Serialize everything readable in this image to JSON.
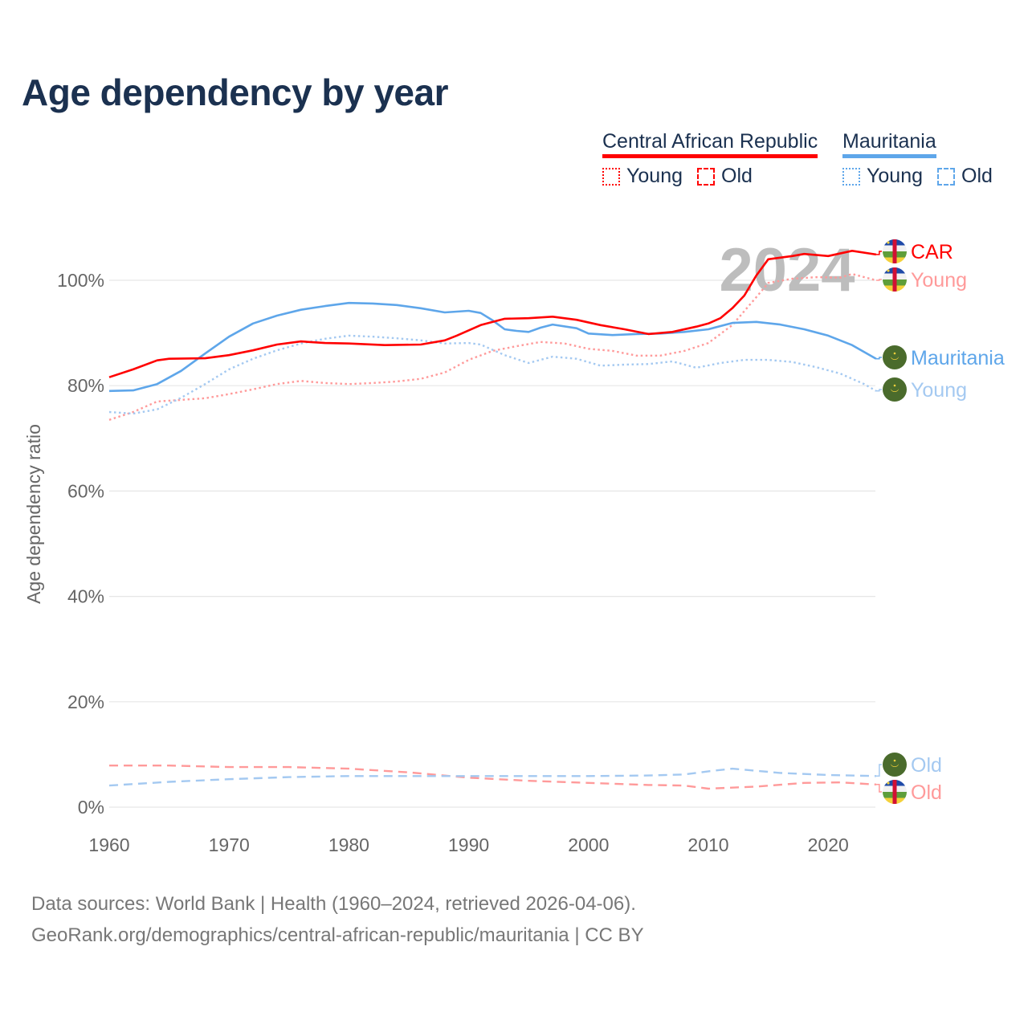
{
  "title": "Age dependency by year",
  "legend": {
    "groups": [
      {
        "country": "Central African Republic",
        "color": "#ff0000",
        "young": "Young",
        "old": "Old"
      },
      {
        "country": "Mauritania",
        "color": "#5ea6ea",
        "young": "Young",
        "old": "Old"
      }
    ]
  },
  "year_watermark": "2024",
  "footer": {
    "line1": "Data sources: World Bank | Health (1960–2024, retrieved 2026-04-06).",
    "line2": "GeoRank.org/demographics/central-african-republic/mauritania | CC BY"
  },
  "chart_data": {
    "type": "line",
    "title": "Age dependency by year",
    "xlabel": "",
    "ylabel": "Age dependency ratio",
    "xlim": [
      1960,
      2024
    ],
    "ylim": [
      0,
      110
    ],
    "x_ticks": [
      "1960",
      "1970",
      "1980",
      "1990",
      "2000",
      "2010",
      "2020"
    ],
    "x_tick_values": [
      1960,
      1970,
      1980,
      1990,
      2000,
      2010,
      2020
    ],
    "y_ticks": [
      "0%",
      "20%",
      "40%",
      "60%",
      "80%",
      "100%"
    ],
    "y_tick_values": [
      0,
      20,
      40,
      60,
      80,
      100
    ],
    "grid": true,
    "series": [
      {
        "name": "Central African Republic",
        "end_label": "CAR",
        "color": "#ff0000",
        "style": "solid",
        "flag": "car",
        "points": [
          [
            1960,
            81.6
          ],
          [
            1962,
            83.1
          ],
          [
            1964,
            84.8
          ],
          [
            1965,
            85.1
          ],
          [
            1968,
            85.2
          ],
          [
            1970,
            85.8
          ],
          [
            1972,
            86.7
          ],
          [
            1974,
            87.8
          ],
          [
            1976,
            88.4
          ],
          [
            1978,
            88.1
          ],
          [
            1980,
            88.0
          ],
          [
            1983,
            87.7
          ],
          [
            1986,
            87.8
          ],
          [
            1988,
            88.6
          ],
          [
            1989,
            89.5
          ],
          [
            1991,
            91.5
          ],
          [
            1993,
            92.7
          ],
          [
            1995,
            92.8
          ],
          [
            1997,
            93.1
          ],
          [
            1999,
            92.5
          ],
          [
            2001,
            91.5
          ],
          [
            2003,
            90.7
          ],
          [
            2005,
            89.8
          ],
          [
            2007,
            90.2
          ],
          [
            2009,
            91.2
          ],
          [
            2010,
            91.8
          ],
          [
            2011,
            92.8
          ],
          [
            2012,
            94.7
          ],
          [
            2013,
            97.1
          ],
          [
            2014,
            100.9
          ],
          [
            2015,
            104.0
          ],
          [
            2017,
            104.6
          ],
          [
            2018,
            105.0
          ],
          [
            2020,
            104.6
          ],
          [
            2022,
            105.6
          ],
          [
            2024,
            104.9
          ]
        ]
      },
      {
        "name": "Central African Republic Young",
        "end_label": "Young",
        "color": "#ff9a9a",
        "style": "dotted",
        "flag": "car",
        "points": [
          [
            1960,
            73.5
          ],
          [
            1962,
            75.0
          ],
          [
            1964,
            77.0
          ],
          [
            1966,
            77.3
          ],
          [
            1968,
            77.6
          ],
          [
            1970,
            78.4
          ],
          [
            1972,
            79.3
          ],
          [
            1974,
            80.3
          ],
          [
            1976,
            80.9
          ],
          [
            1978,
            80.5
          ],
          [
            1980,
            80.3
          ],
          [
            1982,
            80.5
          ],
          [
            1984,
            80.8
          ],
          [
            1986,
            81.3
          ],
          [
            1988,
            82.5
          ],
          [
            1990,
            84.9
          ],
          [
            1992,
            86.6
          ],
          [
            1994,
            87.5
          ],
          [
            1996,
            88.3
          ],
          [
            1998,
            88.0
          ],
          [
            2000,
            87.0
          ],
          [
            2002,
            86.6
          ],
          [
            2004,
            85.7
          ],
          [
            2006,
            85.7
          ],
          [
            2008,
            86.6
          ],
          [
            2010,
            88.1
          ],
          [
            2012,
            91.5
          ],
          [
            2014,
            96.8
          ],
          [
            2015,
            99.5
          ],
          [
            2017,
            100.3
          ],
          [
            2019,
            100.6
          ],
          [
            2021,
            100.5
          ],
          [
            2022,
            101.2
          ],
          [
            2024,
            100.0
          ]
        ]
      },
      {
        "name": "Central African Republic Old",
        "end_label": "Old",
        "color": "#ff9a9a",
        "style": "dashed",
        "flag": "car",
        "points": [
          [
            1960,
            7.9
          ],
          [
            1965,
            7.9
          ],
          [
            1970,
            7.6
          ],
          [
            1975,
            7.6
          ],
          [
            1980,
            7.3
          ],
          [
            1985,
            6.6
          ],
          [
            1990,
            5.6
          ],
          [
            1995,
            5.0
          ],
          [
            2000,
            4.6
          ],
          [
            2005,
            4.2
          ],
          [
            2008,
            4.1
          ],
          [
            2010,
            3.5
          ],
          [
            2014,
            3.9
          ],
          [
            2018,
            4.6
          ],
          [
            2021,
            4.7
          ],
          [
            2024,
            4.3
          ]
        ]
      },
      {
        "name": "Mauritania",
        "end_label": "Mauritania",
        "color": "#5ea6ea",
        "style": "solid",
        "flag": "mrt",
        "points": [
          [
            1960,
            79.0
          ],
          [
            1962,
            79.1
          ],
          [
            1964,
            80.3
          ],
          [
            1966,
            82.8
          ],
          [
            1968,
            86.1
          ],
          [
            1970,
            89.3
          ],
          [
            1972,
            91.8
          ],
          [
            1974,
            93.3
          ],
          [
            1976,
            94.4
          ],
          [
            1978,
            95.1
          ],
          [
            1980,
            95.7
          ],
          [
            1982,
            95.6
          ],
          [
            1984,
            95.3
          ],
          [
            1986,
            94.7
          ],
          [
            1988,
            93.9
          ],
          [
            1990,
            94.2
          ],
          [
            1991,
            93.8
          ],
          [
            1992,
            92.4
          ],
          [
            1993,
            90.7
          ],
          [
            1994,
            90.4
          ],
          [
            1995,
            90.2
          ],
          [
            1996,
            91.0
          ],
          [
            1997,
            91.6
          ],
          [
            1999,
            90.9
          ],
          [
            2000,
            89.9
          ],
          [
            2002,
            89.6
          ],
          [
            2004,
            89.8
          ],
          [
            2006,
            89.9
          ],
          [
            2008,
            90.2
          ],
          [
            2010,
            90.7
          ],
          [
            2012,
            91.9
          ],
          [
            2014,
            92.1
          ],
          [
            2016,
            91.6
          ],
          [
            2018,
            90.7
          ],
          [
            2020,
            89.5
          ],
          [
            2022,
            87.7
          ],
          [
            2024,
            85.1
          ]
        ]
      },
      {
        "name": "Mauritania Young",
        "end_label": "Young",
        "color": "#a4c9f1",
        "style": "dotted",
        "flag": "mrt",
        "points": [
          [
            1960,
            75.0
          ],
          [
            1962,
            74.7
          ],
          [
            1964,
            75.5
          ],
          [
            1966,
            77.7
          ],
          [
            1968,
            80.3
          ],
          [
            1970,
            83.1
          ],
          [
            1972,
            85.1
          ],
          [
            1974,
            86.7
          ],
          [
            1976,
            88.0
          ],
          [
            1978,
            88.9
          ],
          [
            1980,
            89.5
          ],
          [
            1982,
            89.3
          ],
          [
            1984,
            89.0
          ],
          [
            1986,
            88.6
          ],
          [
            1988,
            88.0
          ],
          [
            1990,
            88.1
          ],
          [
            1991,
            87.8
          ],
          [
            1993,
            85.8
          ],
          [
            1995,
            84.3
          ],
          [
            1997,
            85.5
          ],
          [
            1999,
            85.1
          ],
          [
            2001,
            83.8
          ],
          [
            2003,
            84.0
          ],
          [
            2005,
            84.1
          ],
          [
            2007,
            84.6
          ],
          [
            2009,
            83.4
          ],
          [
            2011,
            84.3
          ],
          [
            2013,
            84.9
          ],
          [
            2015,
            84.9
          ],
          [
            2017,
            84.5
          ],
          [
            2019,
            83.5
          ],
          [
            2021,
            82.3
          ],
          [
            2023,
            80.3
          ],
          [
            2024,
            79.0
          ]
        ]
      },
      {
        "name": "Mauritania Old",
        "end_label": "Old",
        "color": "#a4c9f1",
        "style": "dashed",
        "flag": "mrt",
        "points": [
          [
            1960,
            4.1
          ],
          [
            1965,
            4.8
          ],
          [
            1970,
            5.3
          ],
          [
            1975,
            5.7
          ],
          [
            1980,
            5.9
          ],
          [
            1990,
            5.9
          ],
          [
            2000,
            5.9
          ],
          [
            2005,
            6.0
          ],
          [
            2008,
            6.2
          ],
          [
            2010,
            6.8
          ],
          [
            2012,
            7.3
          ],
          [
            2014,
            6.9
          ],
          [
            2016,
            6.5
          ],
          [
            2020,
            6.1
          ],
          [
            2024,
            5.9
          ]
        ]
      }
    ]
  }
}
